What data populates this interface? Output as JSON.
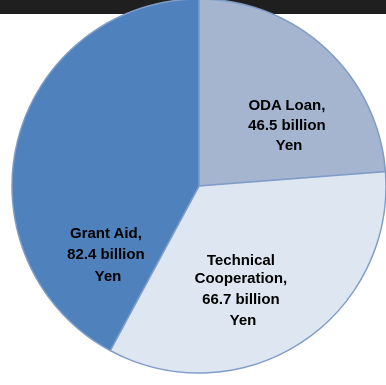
{
  "chart_data": {
    "type": "pie",
    "title": "",
    "slices": [
      {
        "label": "ODA Loan,",
        "label_lines": [
          "ODA Loan,",
          "46.5 billion",
          "Yen"
        ],
        "value": 46.5,
        "unit": "billion Yen",
        "color": "#a5b4cf"
      },
      {
        "label": "Technical Cooperation,",
        "label_lines": [
          "Technical",
          "Cooperation,",
          "66.7 billion",
          "Yen"
        ],
        "value": 66.7,
        "unit": "billion Yen",
        "color": "#dde6f1"
      },
      {
        "label": "Grant Aid,",
        "label_lines": [
          "Grant Aid,",
          "82.4 billion",
          "Yen"
        ],
        "value": 82.4,
        "unit": "billion Yen",
        "color": "#4f81bd"
      }
    ],
    "legend": "none",
    "colors": {
      "edge": "#7f9cc7",
      "header_bar": "#1f1f1f"
    }
  }
}
